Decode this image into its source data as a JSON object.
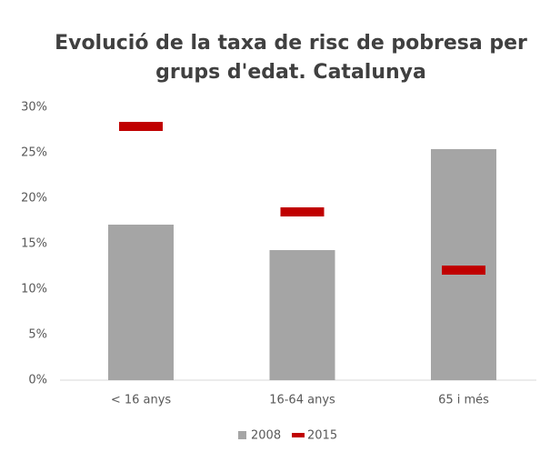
{
  "chart_data": {
    "type": "bar",
    "title": [
      "Evolució de la taxa de risc de pobresa per",
      "grups d'edat. Catalunya"
    ],
    "categories": [
      "< 16 anys",
      "16-64 anys",
      "65 i més"
    ],
    "series": [
      {
        "name": "2008",
        "color": "#a5a5a5",
        "mark": "bar",
        "values": [
          17.1,
          14.3,
          25.4
        ]
      },
      {
        "name": "2015",
        "color": "#c00000",
        "mark": "dash",
        "values": [
          27.9,
          18.5,
          12.1
        ]
      }
    ],
    "ylim": [
      0,
      30
    ],
    "yticks": [
      {
        "value": 0,
        "label": "0%"
      },
      {
        "value": 5,
        "label": "5%"
      },
      {
        "value": 10,
        "label": "10%"
      },
      {
        "value": 15,
        "label": "15%"
      },
      {
        "value": 20,
        "label": "20%"
      },
      {
        "value": 25,
        "label": "25%"
      },
      {
        "value": 30,
        "label": "30%"
      }
    ],
    "grid": false,
    "legend": "bottom"
  }
}
